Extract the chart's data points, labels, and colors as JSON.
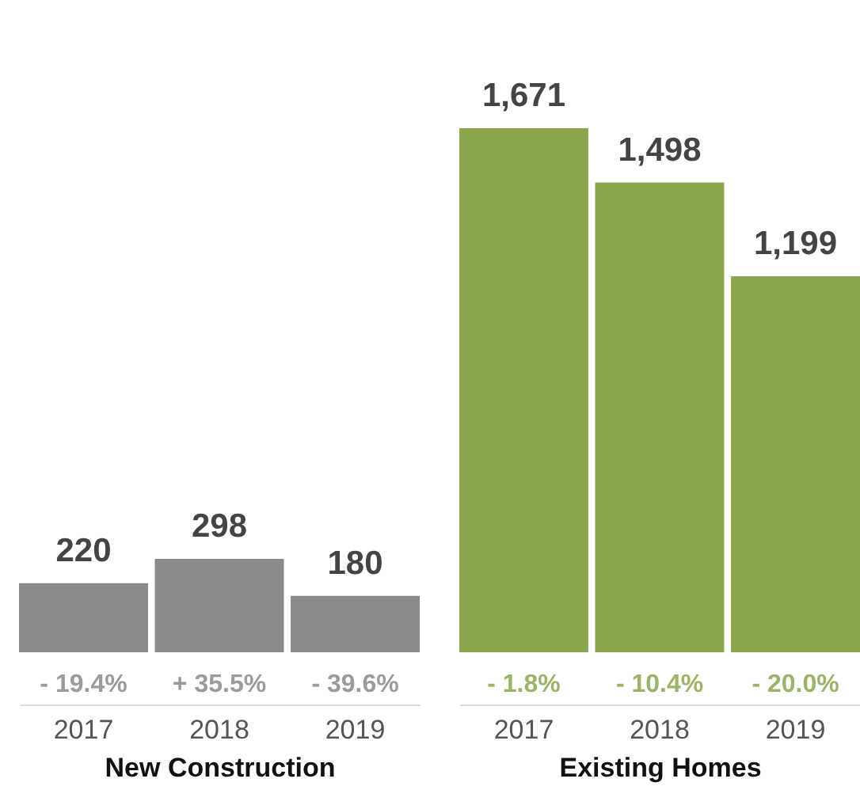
{
  "chart_data": [
    {
      "type": "bar",
      "categories": [
        "2017",
        "2018",
        "2019"
      ],
      "values": [
        220,
        298,
        180
      ],
      "color": "#8a8a8a",
      "value_labels": [
        "220",
        "298",
        "180"
      ],
      "xlabel": "New Construction",
      "annotations": [
        "- 19.4%",
        "+ 35.5%",
        "- 39.6%"
      ]
    },
    {
      "type": "bar",
      "categories": [
        "2017",
        "2018",
        "2019"
      ],
      "values": [
        1671,
        1498,
        1199
      ],
      "color": "#8ba74e",
      "value_labels": [
        "1,671",
        "1,498",
        "1,199"
      ],
      "xlabel": "Existing Homes",
      "annotations": [
        "- 1.8%",
        "- 10.4%",
        "- 20.0%"
      ]
    }
  ]
}
